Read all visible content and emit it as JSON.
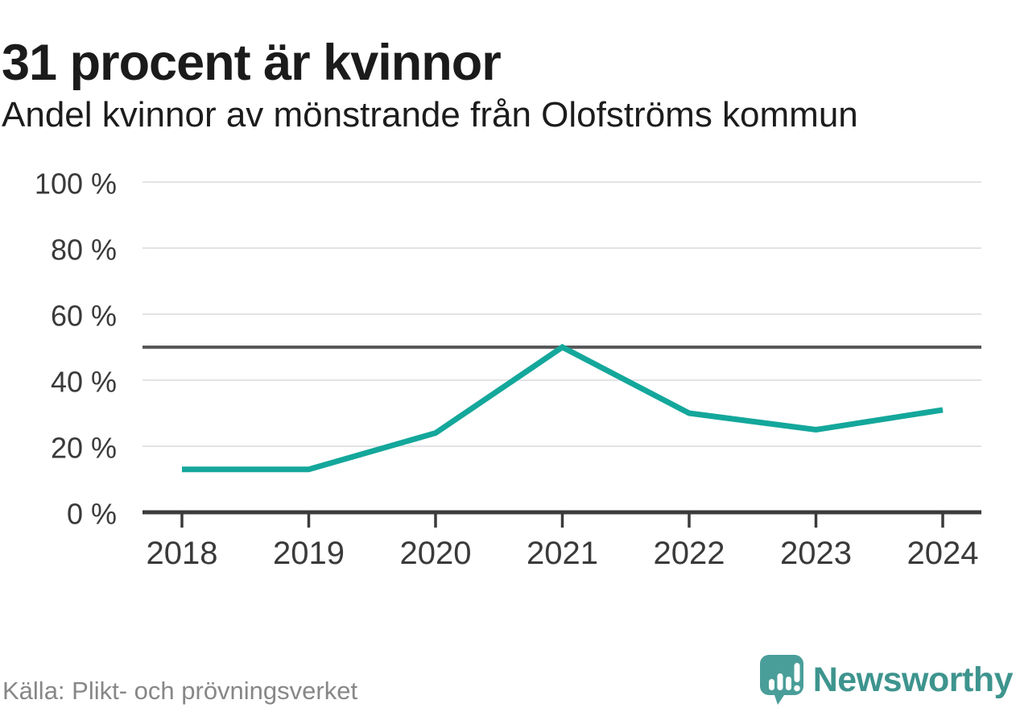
{
  "header": {
    "title": "31 procent är kvinnor",
    "subtitle": "Andel kvinnor av mönstrande från Olofströms kommun"
  },
  "footer": {
    "source": "Källa: Plikt- och prövningsverket",
    "brand": "Newsworthy"
  },
  "chart_data": {
    "type": "line",
    "title": "31 procent är kvinnor",
    "subtitle": "Andel kvinnor av mönstrande från Olofströms kommun",
    "categories": [
      "2018",
      "2019",
      "2020",
      "2021",
      "2022",
      "2023",
      "2024"
    ],
    "values": [
      13,
      13,
      24,
      50,
      30,
      25,
      31
    ],
    "unit": "%",
    "ylim": [
      0,
      100
    ],
    "yticks": [
      0,
      20,
      40,
      60,
      80,
      100
    ],
    "ytick_labels": [
      "0 %",
      "20 %",
      "40 %",
      "60 %",
      "80 %",
      "100 %"
    ],
    "reference_line": 50,
    "grid": true,
    "legend": "none",
    "colors": {
      "line": "#14a79b",
      "gridline": "#e3e3e3",
      "reference_line": "#59595b",
      "axis": "#3b3b3b",
      "tick_label": "#3a3a3a",
      "brand_teal": "#4a9e99",
      "wordmark_teal": "#3e948e"
    }
  }
}
